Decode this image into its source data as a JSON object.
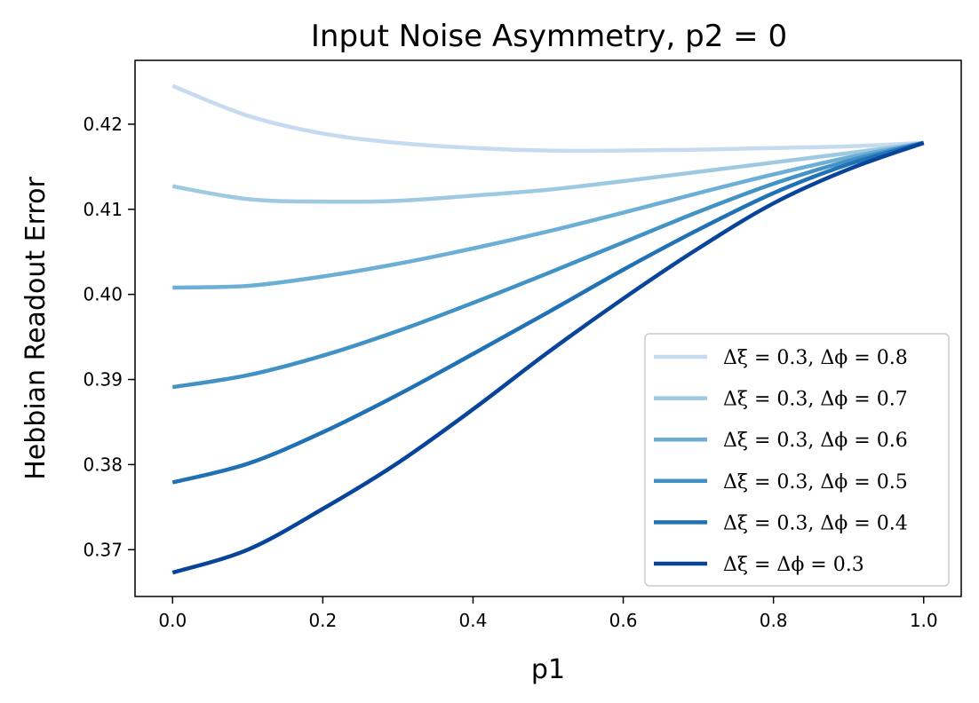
{
  "chart_data": {
    "type": "line",
    "title": "Input Noise Asymmetry, p2 = 0",
    "xlabel": "p1",
    "ylabel": "Hebbian Readout Error",
    "xlim": [
      -0.05,
      1.05
    ],
    "ylim": [
      0.3645,
      0.4275
    ],
    "xticks": [
      0.0,
      0.2,
      0.4,
      0.6,
      0.8,
      1.0
    ],
    "xtick_labels": [
      "0.0",
      "0.2",
      "0.4",
      "0.6",
      "0.8",
      "1.0"
    ],
    "yticks": [
      0.37,
      0.38,
      0.39,
      0.4,
      0.41,
      0.42
    ],
    "ytick_labels": [
      "0.37",
      "0.38",
      "0.39",
      "0.40",
      "0.41",
      "0.42"
    ],
    "grid": false,
    "legend_position": "lower-right",
    "x": [
      0.0,
      0.1,
      0.2,
      0.3,
      0.4,
      0.5,
      0.6,
      0.7,
      0.8,
      0.9,
      1.0
    ],
    "series": [
      {
        "name": "Δξ = 0.3, Δϕ = 0.8",
        "color": "#c6dbef",
        "values": [
          0.4245,
          0.421,
          0.4189,
          0.4178,
          0.4172,
          0.4169,
          0.4169,
          0.417,
          0.4172,
          0.4174,
          0.4178
        ]
      },
      {
        "name": "Δξ = 0.3, Δϕ = 0.7",
        "color": "#9ecae1",
        "values": [
          0.4127,
          0.4112,
          0.4109,
          0.411,
          0.4116,
          0.4123,
          0.4133,
          0.4144,
          0.4155,
          0.4166,
          0.4178
        ]
      },
      {
        "name": "Δξ = 0.3, Δϕ = 0.6",
        "color": "#6baed6",
        "values": [
          0.4008,
          0.401,
          0.4021,
          0.4036,
          0.4054,
          0.4074,
          0.4096,
          0.4119,
          0.4141,
          0.4161,
          0.4178
        ]
      },
      {
        "name": "Δξ = 0.3, Δϕ = 0.5",
        "color": "#4292c6",
        "values": [
          0.3891,
          0.3905,
          0.3928,
          0.3957,
          0.399,
          0.4025,
          0.4061,
          0.4097,
          0.413,
          0.4157,
          0.4178
        ]
      },
      {
        "name": "Δξ = 0.3, Δϕ = 0.4",
        "color": "#2171b5",
        "values": [
          0.3779,
          0.3801,
          0.3838,
          0.3882,
          0.393,
          0.3979,
          0.4029,
          0.4076,
          0.4119,
          0.4153,
          0.4178
        ]
      },
      {
        "name": "Δξ = Δϕ = 0.3",
        "color": "#08449a",
        "values": [
          0.3673,
          0.37,
          0.3748,
          0.3802,
          0.3865,
          0.3932,
          0.3995,
          0.4054,
          0.4107,
          0.4147,
          0.4178
        ]
      }
    ]
  }
}
